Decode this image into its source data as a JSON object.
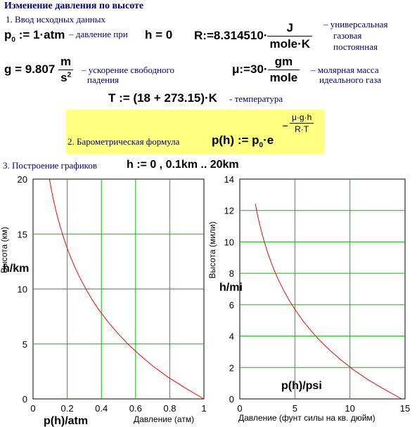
{
  "header": {
    "title": "Изменение давления по высоте",
    "section1": "1. Ввод исходных данных",
    "section2_label": "2. Барометрическая формула",
    "section3": "3. Построение графиков"
  },
  "inputs": {
    "p0": {
      "lhs": "p",
      "sub": "0",
      "assign": ":=",
      "value": "1·atm",
      "note": "– давление при"
    },
    "h0": {
      "text": "h = 0"
    },
    "R": {
      "lhs": "R:=",
      "value": "8.314510·",
      "num": "J",
      "den": "mole·K",
      "note": [
        "– универсальная",
        "газовая",
        "постоянная"
      ]
    },
    "g": {
      "lhs": "g = 9.807",
      "num": "m",
      "den": "s",
      "den_sup": "2",
      "note": [
        "– ускорение свободного",
        "падения"
      ]
    },
    "mu": {
      "lhs": "μ:=30·",
      "num": "gm",
      "den": "mole",
      "note": [
        "– молярная масса",
        "идеального газа"
      ]
    },
    "T": {
      "lhs": "T := (18 + 273.15)·K",
      "note": "- температура"
    },
    "formula": {
      "lhs": "p(h) := p",
      "sub": "0",
      "dot": "·e",
      "exp_sign": "–",
      "exp_num": "μ·g·h",
      "exp_den": "R·T"
    },
    "range": {
      "text": "h := 0 , 0.1km .. 20km"
    }
  },
  "chart_data": [
    {
      "type": "line",
      "title": "",
      "ylabel": "Высота (км)",
      "xlabel": "Давление (атм)",
      "x_expr": "p(h)/atm",
      "y_expr": "h/km",
      "xlim": [
        0,
        1
      ],
      "ylim": [
        0,
        20
      ],
      "xticks": [
        0,
        0.2,
        0.4,
        0.6,
        0.8,
        1
      ],
      "xtick_labels": [
        "0",
        "0.2",
        "0.4",
        "0.6",
        "0.8",
        "1"
      ],
      "yticks": [
        0,
        5,
        10,
        15,
        20
      ],
      "ytick_labels": [
        "0",
        "5",
        "10",
        "15",
        "20"
      ],
      "grid": true,
      "grid_color": "#00c000",
      "line_color": "#ff0000",
      "x": [
        1.0,
        0.89,
        0.788,
        0.701,
        0.624,
        0.555,
        0.494,
        0.439,
        0.39,
        0.347,
        0.309,
        0.275,
        0.244,
        0.217,
        0.193,
        0.172,
        0.153,
        0.136,
        0.121,
        0.108,
        0.096
      ],
      "y": [
        0,
        1,
        2,
        3,
        4,
        5,
        6,
        7,
        8,
        9,
        10,
        11,
        12,
        13,
        14,
        15,
        16,
        17,
        18,
        19,
        20
      ]
    },
    {
      "type": "line",
      "title": "",
      "ylabel": "Высота (мили)",
      "xlabel": "Давление (фунт силы на кв. дюйм)",
      "x_expr": "p(h)/psi",
      "y_expr": "h/mi",
      "xlim": [
        0,
        15
      ],
      "ylim": [
        0,
        14
      ],
      "xticks": [
        0,
        5,
        10,
        15
      ],
      "xtick_labels": [
        "0",
        "5",
        "10",
        "15"
      ],
      "yticks": [
        0,
        2,
        4,
        6,
        8,
        10,
        12,
        14
      ],
      "ytick_labels": [
        "0",
        "2",
        "4",
        "6",
        "8",
        "10",
        "12",
        "14"
      ],
      "grid": true,
      "grid_color": "#00c000",
      "line_color": "#ff0000",
      "x": [
        14.696,
        13.09,
        11.59,
        10.3,
        9.17,
        8.16,
        7.26,
        6.45,
        5.74,
        5.11,
        4.54,
        4.04,
        3.59,
        3.19,
        2.84,
        2.53,
        2.25,
        2.0,
        1.78,
        1.58,
        1.41
      ],
      "y": [
        0,
        0.621,
        1.243,
        1.864,
        2.485,
        3.107,
        3.728,
        4.35,
        4.971,
        5.592,
        6.214,
        6.835,
        7.456,
        8.078,
        8.699,
        9.321,
        9.942,
        10.563,
        11.185,
        11.806,
        12.427
      ]
    }
  ]
}
